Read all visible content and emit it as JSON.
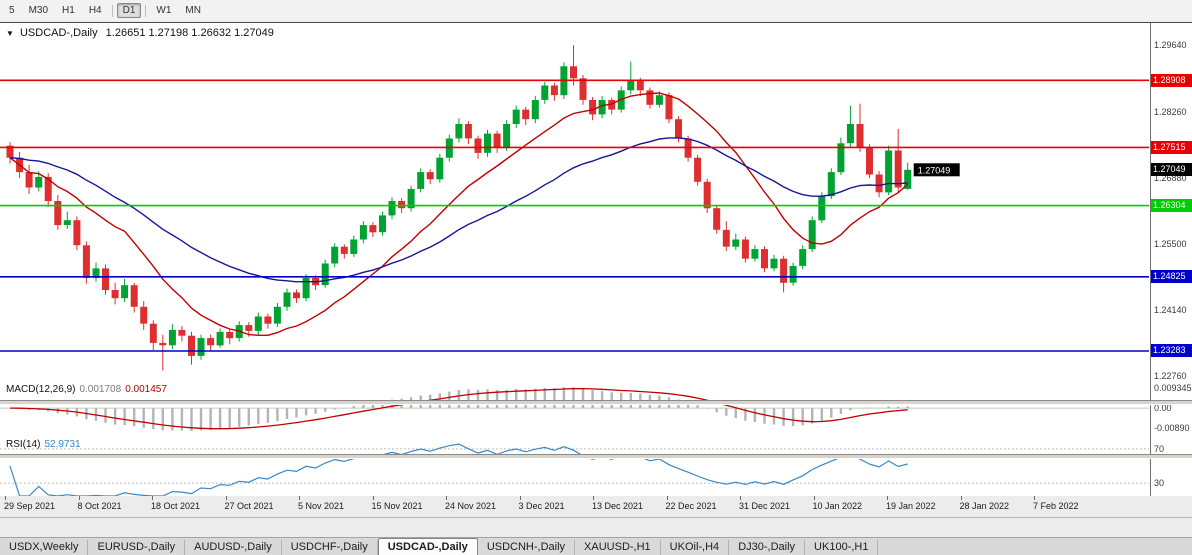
{
  "toolbar": {
    "periods": [
      "5",
      "M30",
      "H1",
      "H4",
      "D1",
      "W1",
      "MN"
    ],
    "active": "D1"
  },
  "chart": {
    "collapse_icon": "▼",
    "title": "USDCAD-,Daily",
    "ohlc_text": "1.26651 1.27198 1.26632 1.27049"
  },
  "chart_data": {
    "type": "candlestick",
    "symbol": "USDCAD",
    "timeframe": "Daily",
    "current": {
      "open": 1.26651,
      "high": 1.27198,
      "low": 1.26632,
      "close": 1.27049,
      "label": "1.27049"
    },
    "colors": {
      "candle_up": "#00a332",
      "candle_down": "#dd2f2f"
    },
    "price_axis": {
      "min": 1.227,
      "max": 1.301,
      "ticks": [
        "1.29640",
        "1.28260",
        "1.26880",
        "1.25500",
        "1.24140",
        "1.22760"
      ]
    },
    "hlines": [
      {
        "price": 1.28908,
        "label": "1.28908",
        "color": "#e80000"
      },
      {
        "price": 1.27515,
        "label": "1.27515",
        "color": "#e80000"
      },
      {
        "price": 1.26304,
        "label": "1.26304",
        "color": "#00cc00"
      },
      {
        "price": 1.24825,
        "label": "1.24825",
        "color": "#0000cc"
      },
      {
        "price": 1.23283,
        "label": "1.23283",
        "color": "#0000cc"
      }
    ],
    "moving_averages": [
      {
        "name": "ma-fast-line",
        "type": "sma",
        "period": 13,
        "color": "#c00000"
      },
      {
        "name": "ma-slow-line",
        "type": "ema",
        "period": 34,
        "color": "#161696"
      }
    ],
    "macd": {
      "title": "MACD(12,26,9)",
      "value_main": "0.001708",
      "value_signal": "0.001457",
      "params": [
        12,
        26,
        9
      ],
      "axis_labels": {
        "max": "0.009345",
        "zero": "0.00",
        "min": "-0.00890"
      },
      "histogram_color": "#b4b4b4",
      "signal_color": "#c00000"
    },
    "rsi": {
      "title": "RSI(14)",
      "value": "52.9731",
      "period": 14,
      "levels": [
        "70",
        "30"
      ],
      "line_color": "#3a87c8"
    },
    "x_labels": [
      "29 Sep 2021",
      "8 Oct 2021",
      "18 Oct 2021",
      "27 Oct 2021",
      "5 Nov 2021",
      "15 Nov 2021",
      "24 Nov 2021",
      "3 Dec 2021",
      "13 Dec 2021",
      "22 Dec 2021",
      "31 Dec 2021",
      "10 Jan 2022",
      "19 Jan 2022",
      "28 Jan 2022",
      "7 Feb 2022"
    ],
    "candles": [
      [
        1.2755,
        1.2762,
        1.2718,
        1.273
      ],
      [
        1.273,
        1.2742,
        1.2688,
        1.27
      ],
      [
        1.27,
        1.2715,
        1.2655,
        1.2668
      ],
      [
        1.2668,
        1.2702,
        1.266,
        1.269
      ],
      [
        1.269,
        1.2698,
        1.2628,
        1.264
      ],
      [
        1.264,
        1.2652,
        1.258,
        1.259
      ],
      [
        1.259,
        1.2618,
        1.2582,
        1.26
      ],
      [
        1.26,
        1.2608,
        1.2538,
        1.2548
      ],
      [
        1.2548,
        1.2556,
        1.2468,
        1.248
      ],
      [
        1.248,
        1.2512,
        1.2472,
        1.25
      ],
      [
        1.25,
        1.2508,
        1.2445,
        1.2455
      ],
      [
        1.2455,
        1.247,
        1.2425,
        1.2438
      ],
      [
        1.2438,
        1.2478,
        1.243,
        1.2465
      ],
      [
        1.2465,
        1.247,
        1.2408,
        1.242
      ],
      [
        1.242,
        1.2432,
        1.2372,
        1.2385
      ],
      [
        1.2385,
        1.2392,
        1.233,
        1.2345
      ],
      [
        1.2345,
        1.2362,
        1.2288,
        1.234
      ],
      [
        1.234,
        1.2384,
        1.2332,
        1.2372
      ],
      [
        1.2372,
        1.238,
        1.2348,
        1.236
      ],
      [
        1.236,
        1.2368,
        1.23,
        1.2318
      ],
      [
        1.2318,
        1.2362,
        1.231,
        1.2355
      ],
      [
        1.2355,
        1.2362,
        1.2328,
        1.234
      ],
      [
        1.234,
        1.2375,
        1.2335,
        1.2368
      ],
      [
        1.2368,
        1.2374,
        1.2342,
        1.2355
      ],
      [
        1.2355,
        1.239,
        1.2348,
        1.2382
      ],
      [
        1.2382,
        1.2388,
        1.2358,
        1.237
      ],
      [
        1.237,
        1.2408,
        1.2362,
        1.24
      ],
      [
        1.24,
        1.2406,
        1.2375,
        1.2385
      ],
      [
        1.2385,
        1.2428,
        1.2378,
        1.242
      ],
      [
        1.242,
        1.2458,
        1.2412,
        1.245
      ],
      [
        1.245,
        1.2456,
        1.2428,
        1.2438
      ],
      [
        1.2438,
        1.2488,
        1.2432,
        1.248
      ],
      [
        1.248,
        1.2486,
        1.2455,
        1.2465
      ],
      [
        1.2465,
        1.2518,
        1.246,
        1.251
      ],
      [
        1.251,
        1.2552,
        1.2502,
        1.2545
      ],
      [
        1.2545,
        1.255,
        1.252,
        1.253
      ],
      [
        1.253,
        1.2568,
        1.2524,
        1.256
      ],
      [
        1.256,
        1.2598,
        1.2552,
        1.259
      ],
      [
        1.259,
        1.2596,
        1.2565,
        1.2575
      ],
      [
        1.2575,
        1.2618,
        1.2568,
        1.261
      ],
      [
        1.261,
        1.2648,
        1.2602,
        1.264
      ],
      [
        1.264,
        1.2646,
        1.2615,
        1.2625
      ],
      [
        1.2625,
        1.2672,
        1.2618,
        1.2665
      ],
      [
        1.2665,
        1.2708,
        1.2658,
        1.27
      ],
      [
        1.27,
        1.2706,
        1.2675,
        1.2685
      ],
      [
        1.2685,
        1.2738,
        1.2678,
        1.273
      ],
      [
        1.273,
        1.2778,
        1.2722,
        1.277
      ],
      [
        1.277,
        1.2812,
        1.2762,
        1.28
      ],
      [
        1.28,
        1.2806,
        1.2758,
        1.277
      ],
      [
        1.277,
        1.2776,
        1.2728,
        1.274
      ],
      [
        1.274,
        1.2788,
        1.2732,
        1.278
      ],
      [
        1.278,
        1.2786,
        1.274,
        1.275
      ],
      [
        1.275,
        1.2808,
        1.2744,
        1.28
      ],
      [
        1.28,
        1.2838,
        1.2792,
        1.283
      ],
      [
        1.283,
        1.2836,
        1.2798,
        1.281
      ],
      [
        1.281,
        1.2858,
        1.2802,
        1.285
      ],
      [
        1.285,
        1.2888,
        1.2842,
        1.288
      ],
      [
        1.288,
        1.2886,
        1.2848,
        1.286
      ],
      [
        1.286,
        1.2928,
        1.2852,
        1.292
      ],
      [
        1.292,
        1.2964,
        1.288,
        1.2895
      ],
      [
        1.2895,
        1.2902,
        1.284,
        1.285
      ],
      [
        1.285,
        1.2856,
        1.2808,
        1.282
      ],
      [
        1.282,
        1.2858,
        1.2812,
        1.285
      ],
      [
        1.285,
        1.2855,
        1.282,
        1.283
      ],
      [
        1.283,
        1.2878,
        1.2824,
        1.287
      ],
      [
        1.287,
        1.293,
        1.2862,
        1.289
      ],
      [
        1.289,
        1.2896,
        1.2858,
        1.287
      ],
      [
        1.287,
        1.2876,
        1.2832,
        1.284
      ],
      [
        1.284,
        1.2868,
        1.2834,
        1.286
      ],
      [
        1.286,
        1.2866,
        1.2802,
        1.281
      ],
      [
        1.281,
        1.2816,
        1.2762,
        1.277
      ],
      [
        1.277,
        1.2776,
        1.2722,
        1.273
      ],
      [
        1.273,
        1.2736,
        1.2672,
        1.268
      ],
      [
        1.268,
        1.2686,
        1.2615,
        1.2625
      ],
      [
        1.2625,
        1.2632,
        1.2572,
        1.258
      ],
      [
        1.258,
        1.2598,
        1.2536,
        1.2545
      ],
      [
        1.2545,
        1.2572,
        1.2538,
        1.256
      ],
      [
        1.256,
        1.2566,
        1.2512,
        1.252
      ],
      [
        1.252,
        1.2548,
        1.2514,
        1.254
      ],
      [
        1.254,
        1.2546,
        1.2492,
        1.25
      ],
      [
        1.25,
        1.2528,
        1.2494,
        1.252
      ],
      [
        1.252,
        1.2526,
        1.245,
        1.247
      ],
      [
        1.247,
        1.2512,
        1.2464,
        1.2505
      ],
      [
        1.2505,
        1.2548,
        1.2498,
        1.254
      ],
      [
        1.254,
        1.2608,
        1.2534,
        1.26
      ],
      [
        1.26,
        1.2658,
        1.2594,
        1.265
      ],
      [
        1.265,
        1.2708,
        1.2644,
        1.27
      ],
      [
        1.27,
        1.2772,
        1.2694,
        1.276
      ],
      [
        1.276,
        1.2838,
        1.2752,
        1.28
      ],
      [
        1.28,
        1.2842,
        1.2742,
        1.2752
      ],
      [
        1.2752,
        1.2758,
        1.2688,
        1.2695
      ],
      [
        1.2695,
        1.2702,
        1.2648,
        1.2658
      ],
      [
        1.2658,
        1.2755,
        1.2652,
        1.2745
      ],
      [
        1.2745,
        1.279,
        1.2658,
        1.2668
      ],
      [
        1.26651,
        1.27198,
        1.26632,
        1.27049
      ]
    ]
  },
  "tabs": {
    "items": [
      "USDX,Weekly",
      "EURUSD-,Daily",
      "AUDUSD-,Daily",
      "USDCHF-,Daily",
      "USDCAD-,Daily",
      "USDCNH-,Daily",
      "XAUUSD-,H1",
      "UKOil-,H4",
      "DJ30-,Daily",
      "UK100-,H1"
    ],
    "active_index": 4
  }
}
